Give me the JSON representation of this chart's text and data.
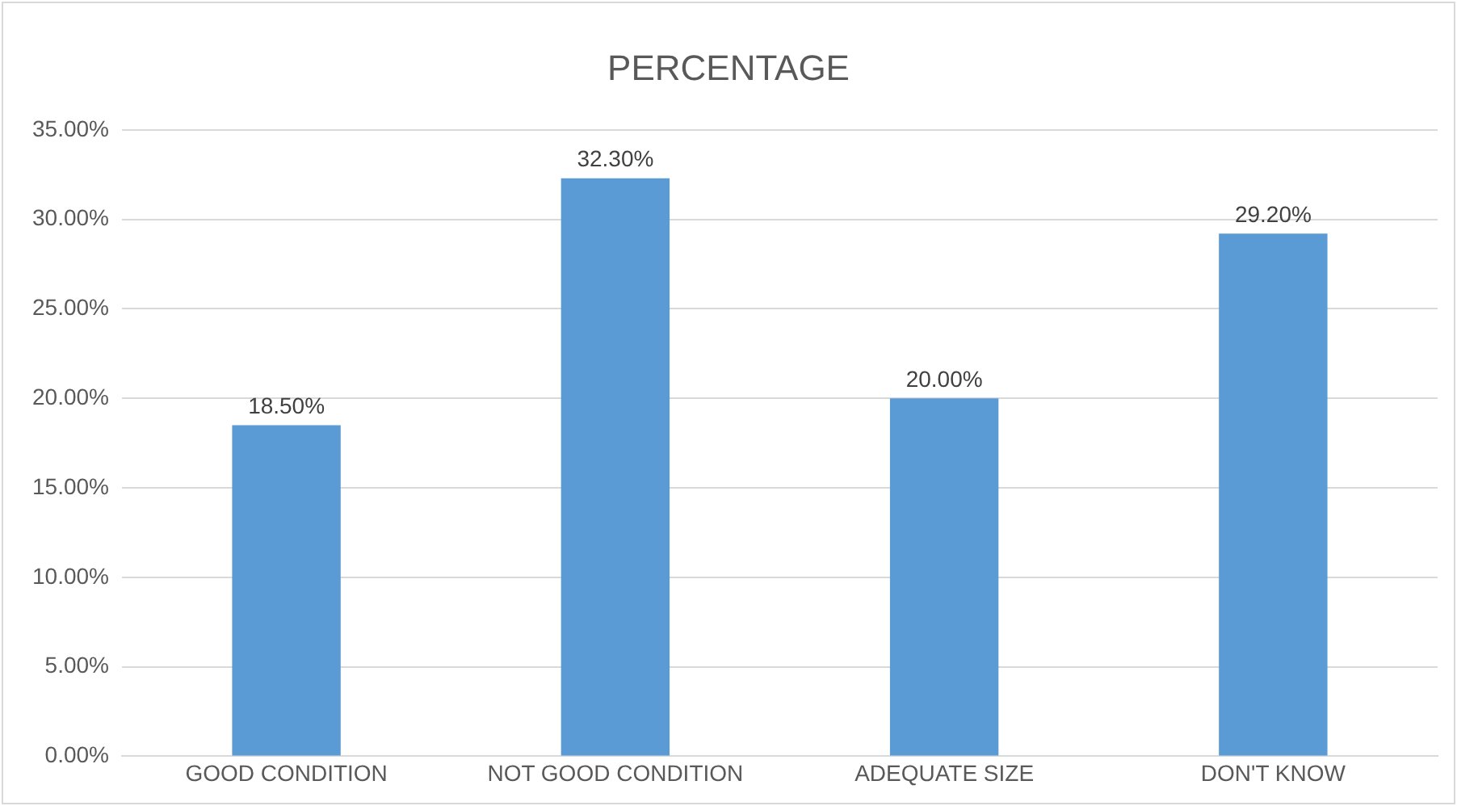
{
  "chart_data": {
    "type": "bar",
    "title": "PERCENTAGE",
    "categories": [
      "GOOD CONDITION",
      "NOT GOOD CONDITION",
      "ADEQUATE SIZE",
      "DON'T KNOW"
    ],
    "values": [
      18.5,
      32.3,
      20,
      29.2
    ],
    "value_labels": [
      "18.50%",
      "32.30%",
      "20.00%",
      "29.20%"
    ],
    "color": "#5b9bd5",
    "ylim": [
      0,
      35
    ],
    "yticks": [
      {
        "value": 0,
        "label": "0.00%"
      },
      {
        "value": 5,
        "label": "5.00%"
      },
      {
        "value": 10,
        "label": "10.00%"
      },
      {
        "value": 15,
        "label": "15.00%"
      },
      {
        "value": 20,
        "label": "20.00%"
      },
      {
        "value": 25,
        "label": "25.00%"
      },
      {
        "value": 30,
        "label": "30.00%"
      },
      {
        "value": 35,
        "label": "35.00%"
      }
    ],
    "grid": "y",
    "legend": false
  }
}
